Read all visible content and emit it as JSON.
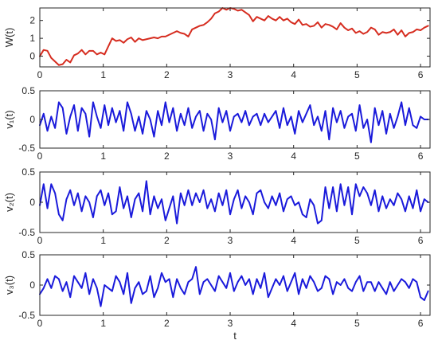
{
  "chart_data": [
    {
      "type": "line",
      "ylabel": "W(t)",
      "xlabel": "",
      "xlim": [
        0,
        6.15
      ],
      "ylim": [
        -0.6,
        2.7
      ],
      "xticks": [
        0,
        1,
        2,
        3,
        4,
        5,
        6
      ],
      "yticks": [
        0,
        1,
        2
      ],
      "grid": false,
      "series": [
        {
          "color": "#d62d20",
          "x": [
            0,
            0.06,
            0.12,
            0.18,
            0.24,
            0.3,
            0.36,
            0.42,
            0.48,
            0.54,
            0.6,
            0.66,
            0.72,
            0.78,
            0.84,
            0.9,
            0.96,
            1.02,
            1.08,
            1.14,
            1.2,
            1.26,
            1.32,
            1.38,
            1.44,
            1.5,
            1.56,
            1.62,
            1.68,
            1.74,
            1.8,
            1.86,
            1.92,
            1.98,
            2.04,
            2.1,
            2.16,
            2.22,
            2.28,
            2.34,
            2.4,
            2.46,
            2.52,
            2.58,
            2.64,
            2.7,
            2.76,
            2.82,
            2.88,
            2.94,
            3,
            3.06,
            3.12,
            3.18,
            3.24,
            3.3,
            3.36,
            3.42,
            3.48,
            3.54,
            3.6,
            3.66,
            3.72,
            3.78,
            3.84,
            3.9,
            3.96,
            4.02,
            4.08,
            4.14,
            4.2,
            4.26,
            4.32,
            4.38,
            4.44,
            4.5,
            4.56,
            4.62,
            4.68,
            4.74,
            4.8,
            4.86,
            4.92,
            4.98,
            5.04,
            5.1,
            5.16,
            5.22,
            5.28,
            5.34,
            5.4,
            5.46,
            5.52,
            5.58,
            5.64,
            5.7,
            5.76,
            5.82,
            5.88,
            5.94,
            6,
            6.06,
            6.12
          ],
          "values": [
            0,
            0.35,
            0.3,
            -0.1,
            -0.3,
            -0.5,
            -0.45,
            -0.2,
            -0.35,
            0.05,
            0.15,
            0.35,
            0.1,
            0.3,
            0.3,
            0.1,
            0.2,
            0.1,
            0.55,
            1,
            0.85,
            0.9,
            0.75,
            0.95,
            1.05,
            0.8,
            1,
            0.9,
            0.95,
            1,
            1.05,
            1,
            1.1,
            1.1,
            1.2,
            1.3,
            1.4,
            1.3,
            1.25,
            1.1,
            1.5,
            1.6,
            1.7,
            1.75,
            1.9,
            2.1,
            2.4,
            2.5,
            2.7,
            2.6,
            2.7,
            2.65,
            2.55,
            2.6,
            2.45,
            2.3,
            1.95,
            2.2,
            2.1,
            2,
            2.25,
            2.1,
            2,
            2.2,
            2,
            2.1,
            1.9,
            1.8,
            2.05,
            1.75,
            1.8,
            1.65,
            1.7,
            1.9,
            1.6,
            1.8,
            1.75,
            1.65,
            1.5,
            1.85,
            1.6,
            1.45,
            1.55,
            1.3,
            1.4,
            1.25,
            1.35,
            1.6,
            1.5,
            1.2,
            1.35,
            1.3,
            1.35,
            1.5,
            1.2,
            1.45,
            1.1,
            1.3,
            1.35,
            1.5,
            1.45,
            1.6,
            1.7
          ]
        }
      ]
    },
    {
      "type": "line",
      "ylabel": "v₁(t)",
      "xlabel": "",
      "xlim": [
        0,
        6.15
      ],
      "ylim": [
        -0.5,
        0.5
      ],
      "xticks": [
        0,
        1,
        2,
        3,
        4,
        5,
        6
      ],
      "yticks": [
        -0.5,
        0,
        0.5
      ],
      "grid": false,
      "series": [
        {
          "color": "#1a1adb",
          "x": [
            0,
            0.06,
            0.12,
            0.18,
            0.24,
            0.3,
            0.36,
            0.42,
            0.48,
            0.54,
            0.6,
            0.66,
            0.72,
            0.78,
            0.84,
            0.9,
            0.96,
            1.02,
            1.08,
            1.14,
            1.2,
            1.26,
            1.32,
            1.38,
            1.44,
            1.5,
            1.56,
            1.62,
            1.68,
            1.74,
            1.8,
            1.86,
            1.92,
            1.98,
            2.04,
            2.1,
            2.16,
            2.22,
            2.28,
            2.34,
            2.4,
            2.46,
            2.52,
            2.58,
            2.64,
            2.7,
            2.76,
            2.82,
            2.88,
            2.94,
            3,
            3.06,
            3.12,
            3.18,
            3.24,
            3.3,
            3.36,
            3.42,
            3.48,
            3.54,
            3.6,
            3.66,
            3.72,
            3.78,
            3.84,
            3.9,
            3.96,
            4.02,
            4.08,
            4.14,
            4.2,
            4.26,
            4.32,
            4.38,
            4.44,
            4.5,
            4.56,
            4.62,
            4.68,
            4.74,
            4.8,
            4.86,
            4.92,
            4.98,
            5.04,
            5.1,
            5.16,
            5.22,
            5.28,
            5.34,
            5.4,
            5.46,
            5.52,
            5.58,
            5.64,
            5.7,
            5.76,
            5.82,
            5.88,
            5.94,
            6,
            6.06,
            6.12
          ],
          "values": [
            -0.1,
            0.1,
            -0.2,
            0.05,
            -0.15,
            0.3,
            0.2,
            -0.25,
            0.05,
            0.25,
            -0.2,
            0.2,
            0.1,
            -0.3,
            0.3,
            0.05,
            -0.15,
            0.25,
            -0.1,
            0.2,
            -0.05,
            0.15,
            -0.2,
            0.3,
            0.1,
            -0.2,
            0.05,
            -0.25,
            0.15,
            0,
            -0.3,
            0.15,
            -0.1,
            0.3,
            -0.05,
            0.2,
            -0.2,
            0.1,
            -0.1,
            0.2,
            -0.15,
            0.05,
            0.15,
            -0.2,
            0.1,
            0,
            -0.35,
            0.2,
            -0.05,
            0.15,
            -0.2,
            0.05,
            0.1,
            -0.05,
            0.15,
            -0.1,
            0.05,
            0.1,
            -0.1,
            0.1,
            -0.05,
            0.05,
            0.15,
            -0.15,
            0.2,
            -0.1,
            0.05,
            -0.25,
            0.15,
            -0.05,
            0.1,
            0.25,
            -0.1,
            0.05,
            -0.2,
            0.15,
            -0.35,
            0.2,
            -0.05,
            0.15,
            -0.15,
            0.05,
            0.1,
            -0.2,
            0.25,
            -0.15,
            0,
            -0.4,
            0.2,
            -0.1,
            0.15,
            -0.25,
            0.1,
            -0.15,
            0.05,
            0.3,
            -0.1,
            0.2,
            -0.1,
            -0.15,
            0.05,
            0,
            0
          ]
        }
      ]
    },
    {
      "type": "line",
      "ylabel": "v₂(t)",
      "xlabel": "",
      "xlim": [
        0,
        6.15
      ],
      "ylim": [
        -0.5,
        0.5
      ],
      "xticks": [
        0,
        1,
        2,
        3,
        4,
        5,
        6
      ],
      "yticks": [
        -0.5,
        0,
        0.5
      ],
      "grid": false,
      "series": [
        {
          "color": "#1a1adb",
          "x": [
            0,
            0.06,
            0.12,
            0.18,
            0.24,
            0.3,
            0.36,
            0.42,
            0.48,
            0.54,
            0.6,
            0.66,
            0.72,
            0.78,
            0.84,
            0.9,
            0.96,
            1.02,
            1.08,
            1.14,
            1.2,
            1.26,
            1.32,
            1.38,
            1.44,
            1.5,
            1.56,
            1.62,
            1.68,
            1.74,
            1.8,
            1.86,
            1.92,
            1.98,
            2.04,
            2.1,
            2.16,
            2.22,
            2.28,
            2.34,
            2.4,
            2.46,
            2.52,
            2.58,
            2.64,
            2.7,
            2.76,
            2.82,
            2.88,
            2.94,
            3,
            3.06,
            3.12,
            3.18,
            3.24,
            3.3,
            3.36,
            3.42,
            3.48,
            3.54,
            3.6,
            3.66,
            3.72,
            3.78,
            3.84,
            3.9,
            3.96,
            4.02,
            4.08,
            4.14,
            4.2,
            4.26,
            4.32,
            4.38,
            4.44,
            4.5,
            4.56,
            4.62,
            4.68,
            4.74,
            4.8,
            4.86,
            4.92,
            4.98,
            5.04,
            5.1,
            5.16,
            5.22,
            5.28,
            5.34,
            5.4,
            5.46,
            5.52,
            5.58,
            5.64,
            5.7,
            5.76,
            5.82,
            5.88,
            5.94,
            6,
            6.06,
            6.12
          ],
          "values": [
            -0.05,
            0.3,
            -0.1,
            0.3,
            0.15,
            -0.2,
            -0.3,
            0.05,
            0.2,
            -0.05,
            0.15,
            -0.15,
            0.1,
            0,
            -0.25,
            0.1,
            0.2,
            -0.05,
            0.15,
            -0.2,
            -0.15,
            0.25,
            -0.1,
            0.1,
            -0.25,
            0.05,
            0.15,
            -0.15,
            0.35,
            -0.2,
            0.1,
            -0.1,
            0.05,
            -0.3,
            -0.1,
            0.1,
            -0.35,
            0.15,
            -0.05,
            0.2,
            -0.05,
            0.15,
            0,
            0.2,
            -0.1,
            0.05,
            -0.15,
            0.15,
            -0.05,
            0.2,
            -0.2,
            0.05,
            0.2,
            -0.1,
            0.1,
            0,
            -0.2,
            0.15,
            0.2,
            0,
            -0.1,
            0.1,
            -0.05,
            0.15,
            -0.15,
            0.05,
            0.1,
            -0.05,
            0,
            -0.2,
            -0.25,
            0.05,
            -0.05,
            -0.35,
            -0.3,
            0.25,
            -0.1,
            0.25,
            -0.15,
            0.3,
            -0.05,
            0.25,
            -0.2,
            0.3,
            0.1,
            0.25,
            0.15,
            -0.05,
            0.2,
            -0.15,
            0.1,
            -0.1,
            0.05,
            -0.05,
            0.15,
            0.05,
            -0.15,
            0.1,
            -0.1,
            0.2,
            -0.15,
            0.05,
            0
          ]
        }
      ]
    },
    {
      "type": "line",
      "ylabel": "v₃(t)",
      "xlabel": "t",
      "xlim": [
        0,
        6.15
      ],
      "ylim": [
        -0.5,
        0.5
      ],
      "xticks": [
        0,
        1,
        2,
        3,
        4,
        5,
        6
      ],
      "yticks": [
        -0.5,
        0,
        0.5
      ],
      "grid": false,
      "series": [
        {
          "color": "#1a1adb",
          "x": [
            0,
            0.06,
            0.12,
            0.18,
            0.24,
            0.3,
            0.36,
            0.42,
            0.48,
            0.54,
            0.6,
            0.66,
            0.72,
            0.78,
            0.84,
            0.9,
            0.96,
            1.02,
            1.08,
            1.14,
            1.2,
            1.26,
            1.32,
            1.38,
            1.44,
            1.5,
            1.56,
            1.62,
            1.68,
            1.74,
            1.8,
            1.86,
            1.92,
            1.98,
            2.04,
            2.1,
            2.16,
            2.22,
            2.28,
            2.34,
            2.4,
            2.46,
            2.52,
            2.58,
            2.64,
            2.7,
            2.76,
            2.82,
            2.88,
            2.94,
            3,
            3.06,
            3.12,
            3.18,
            3.24,
            3.3,
            3.36,
            3.42,
            3.48,
            3.54,
            3.6,
            3.66,
            3.72,
            3.78,
            3.84,
            3.9,
            3.96,
            4.02,
            4.08,
            4.14,
            4.2,
            4.26,
            4.32,
            4.38,
            4.44,
            4.5,
            4.56,
            4.62,
            4.68,
            4.74,
            4.8,
            4.86,
            4.92,
            4.98,
            5.04,
            5.1,
            5.16,
            5.22,
            5.28,
            5.34,
            5.4,
            5.46,
            5.52,
            5.58,
            5.64,
            5.7,
            5.76,
            5.82,
            5.88,
            5.94,
            6,
            6.06,
            6.12
          ],
          "values": [
            -0.15,
            -0.05,
            0.1,
            -0.05,
            0.15,
            0.1,
            -0.1,
            0.05,
            -0.2,
            0.15,
            0.05,
            -0.05,
            0.2,
            -0.15,
            0.1,
            -0.05,
            -0.35,
            0,
            -0.05,
            -0.1,
            0.15,
            0.05,
            -0.15,
            0.2,
            -0.3,
            -0.05,
            0.05,
            -0.15,
            -0.1,
            0.15,
            -0.2,
            -0.05,
            0.2,
            0.05,
            0.1,
            -0.2,
            0.1,
            -0.05,
            -0.15,
            0.05,
            0.1,
            0.3,
            -0.15,
            0.05,
            0.1,
            0,
            -0.1,
            0.15,
            0.05,
            -0.05,
            0.2,
            -0.1,
            0.05,
            0.15,
            0,
            0.1,
            -0.15,
            0.1,
            -0.05,
            0.2,
            -0.2,
            -0.05,
            0.1,
            0,
            0.15,
            -0.1,
            0.05,
            0.2,
            -0.15,
            0.1,
            -0.05,
            0.15,
            0.05,
            -0.1,
            -0.05,
            0.15,
            0.1,
            -0.15,
            0.05,
            0,
            0.1,
            -0.05,
            -0.1,
            0.05,
            0.15,
            -0.1,
            0.05,
            0.05,
            -0.1,
            0.05,
            -0.05,
            -0.15,
            0.05,
            -0.1,
            0,
            0.1,
            0.05,
            -0.05,
            0.1,
            0.05,
            -0.2,
            -0.25,
            -0.1
          ]
        }
      ]
    }
  ]
}
